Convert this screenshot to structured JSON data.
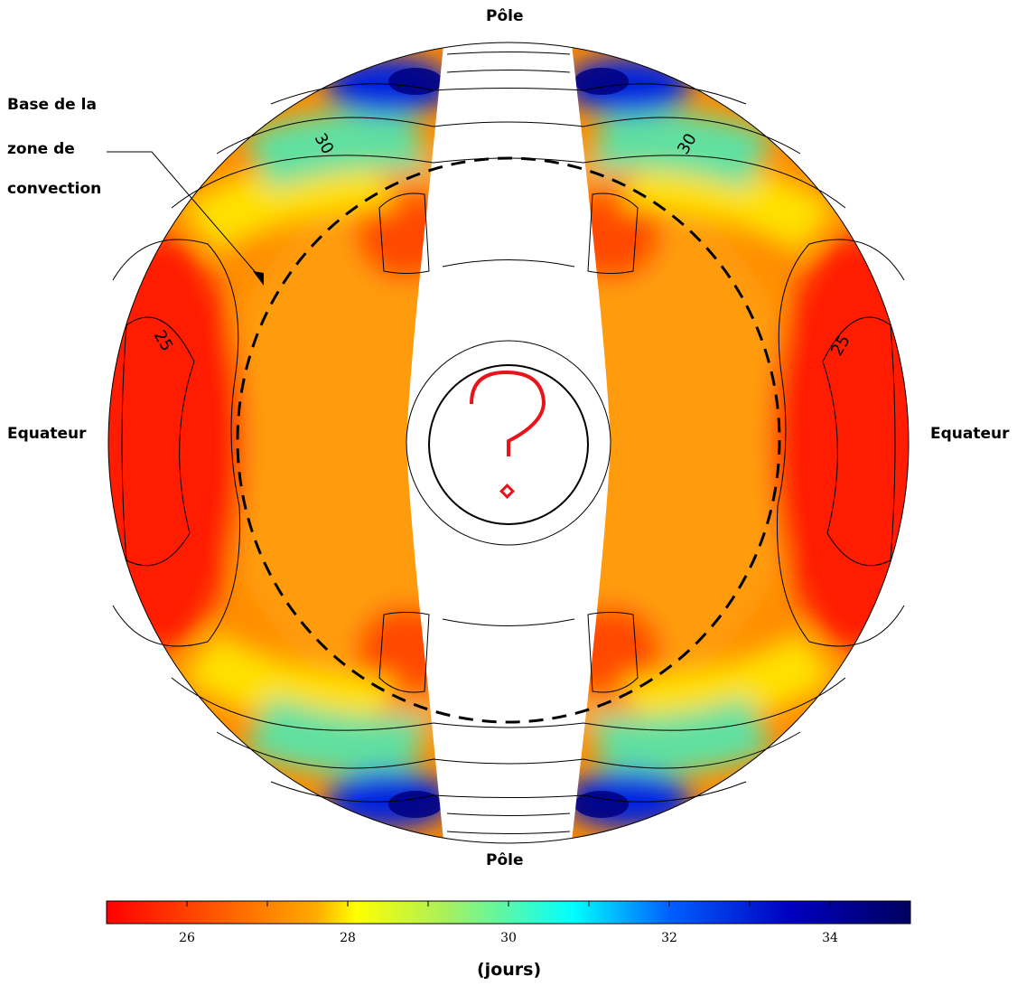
{
  "labels": {
    "pole_top": "Pôle",
    "pole_bottom": "Pôle",
    "equator_left": "Equateur",
    "equator_right": "Equateur",
    "base_line1": "Base de la",
    "base_line2": "zone de",
    "base_line3": "convection",
    "colorbar_label": "(jours)"
  },
  "chart_data": {
    "type": "heatmap",
    "title": "",
    "quantity": "rotation period",
    "colorbar": {
      "range": [
        25,
        35
      ],
      "ticks": [
        26,
        28,
        30,
        32,
        34
      ],
      "label": "(jours)",
      "colormap": "jet reversed (red = short, dark blue = long)"
    },
    "contour_labels": [
      "30",
      "30",
      "25",
      "25"
    ],
    "regions": [
      {
        "region": "equator, outer convection zone",
        "value": 25
      },
      {
        "region": "mid-latitudes, convection zone",
        "value": 27
      },
      {
        "region": "high latitudes near pole",
        "value": 34
      },
      {
        "region": "radiative interior",
        "value": 27
      }
    ],
    "base_convection_zone_radius_fraction": 0.71,
    "core": {
      "value": "?",
      "note": "unknown core rotation"
    }
  },
  "colors": {
    "red": "#ff0000",
    "orange": "#ff9a00",
    "yellow": "#ffff00",
    "cyan": "#00ffff",
    "blue": "#0000cc",
    "navy": "#000066",
    "question_mark": "#e8141a"
  }
}
